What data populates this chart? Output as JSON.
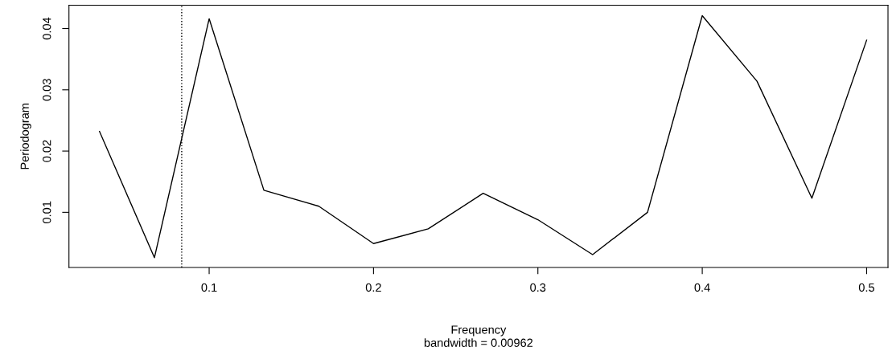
{
  "chart_data": {
    "type": "line",
    "xlabel": "Frequency",
    "ylabel": "Periodogram",
    "annotations": [
      "bandwidth = 0.00962"
    ],
    "x": [
      0.0333,
      0.0667,
      0.1,
      0.1333,
      0.1667,
      0.2,
      0.2333,
      0.2667,
      0.3,
      0.3333,
      0.3667,
      0.4,
      0.4333,
      0.4667,
      0.5
    ],
    "series": [
      {
        "color": "#000000",
        "values": [
          0.0232,
          0.0026,
          0.0416,
          0.0136,
          0.011,
          0.0049,
          0.0073,
          0.0131,
          0.0088,
          0.0031,
          0.01,
          0.0421,
          0.0314,
          0.0123,
          0.0381
        ]
      }
    ],
    "xlim": [
      0.0147,
      0.513
    ],
    "ylim": [
      0.001,
      0.0438
    ],
    "xticks": [
      0.1,
      0.2,
      0.3,
      0.4,
      0.5
    ],
    "yticks": [
      0.01,
      0.02,
      0.03,
      0.04
    ],
    "ref_lines": [
      {
        "axis": "x",
        "value": 0.0833,
        "color": "#000000",
        "line_style": "dotted"
      }
    ],
    "grid": false,
    "legend": false,
    "line_style": "solid",
    "marker": "none"
  }
}
